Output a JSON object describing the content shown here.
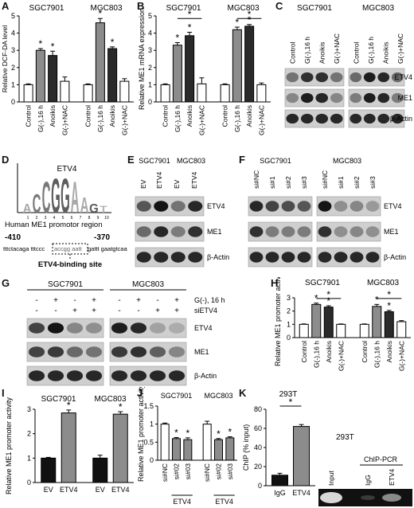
{
  "panels": {
    "A": {
      "letter": "A",
      "ylabel": "Relative DCF-DA level",
      "groups": [
        "SGC7901",
        "MGC803"
      ],
      "categories": [
        "Control",
        "G(-),16 h",
        "Anoikis",
        "G(-)+NAC"
      ]
    },
    "B": {
      "letter": "B",
      "ylabel": "Relative ME1 mRNA expression",
      "groups": [
        "SGC7901",
        "MGC803"
      ],
      "categories": [
        "Control",
        "G(-),16 h",
        "Anoikis",
        "G(-)+NAC"
      ]
    },
    "C": {
      "letter": "C",
      "groups": [
        "SGC7901",
        "MGC803"
      ],
      "lanes": [
        "Control",
        "G(-),16 h",
        "Anoikis",
        "G(-)+NAC"
      ],
      "bands": [
        "ETV4",
        "ME1",
        "β-Actin"
      ]
    },
    "D": {
      "letter": "D",
      "motif_label": "ETV4",
      "region_label": "Human ME1 promotor region",
      "pos_left": "-410",
      "pos_right": "-370",
      "seq_left": "tttctacaga tttccc",
      "seq_box": "accgg aatt",
      "seq_right": "gattt gaatgtcaat",
      "site_label": "ETV4-binding site",
      "logo_letters": [
        "A",
        "C",
        "C",
        "G",
        "G",
        "A",
        "A",
        "G",
        "T"
      ]
    },
    "E": {
      "letter": "E",
      "groups": [
        "SGC7901",
        "MGC803"
      ],
      "lanes": [
        "EV",
        "ETV4",
        "EV",
        "ETV4"
      ],
      "bands": [
        "ETV4",
        "ME1",
        "β-Actin"
      ]
    },
    "F": {
      "letter": "F",
      "groups": [
        "SGC7901",
        "MGC803"
      ],
      "lanes": [
        "si#NC",
        "si#1",
        "si#2",
        "si#3",
        "si#NC",
        "si#1",
        "si#2",
        "si#3"
      ],
      "bands": [
        "ETV4",
        "ME1",
        "β-Actin"
      ]
    },
    "G": {
      "letter": "G",
      "groups": [
        "SGC7901",
        "MGC803"
      ],
      "row1_label": "G(-), 16 h",
      "row2_label": "siETV4",
      "row1": [
        "-",
        "+",
        "-",
        "+",
        "-",
        "+",
        "-",
        "+"
      ],
      "row2": [
        "-",
        "-",
        "+",
        "+",
        "-",
        "-",
        "+",
        "+"
      ],
      "bands": [
        "ETV4",
        "ME1",
        "β-Actin"
      ]
    },
    "H": {
      "letter": "H",
      "ylabel": "Relative ME1 promoter activity",
      "groups": [
        "SGC7901",
        "MGC803"
      ],
      "categories": [
        "Control",
        "G(-),16 h",
        "Anoikis",
        "G(-)+NAC"
      ]
    },
    "I": {
      "letter": "I",
      "ylabel": "Relative ME1 promoter activity",
      "groups": [
        "SGC7901",
        "MGC803"
      ],
      "categories": [
        "EV",
        "ETV4"
      ]
    },
    "J": {
      "letter": "J",
      "ylabel": "Relative ME1 promoter activity",
      "groups": [
        "SGC7901",
        "MGC803"
      ],
      "categories": [
        "si#NC",
        "si#02",
        "si#03"
      ],
      "sublabel": "ETV4"
    },
    "K": {
      "letter": "K",
      "ylabel": "ChIP (% input)",
      "cell": "293T",
      "categories": [
        "IgG",
        "ETV4"
      ],
      "gel_title": "ChIP-PCR",
      "gel_lanes": [
        "Input",
        "IgG",
        "ETV4"
      ]
    }
  },
  "chart_data": [
    {
      "type": "bar",
      "panel": "A",
      "ylabel": "Relative DCF-DA level",
      "ylim": [
        0,
        5
      ],
      "yticks": [
        0,
        1,
        2,
        3,
        4,
        5
      ],
      "groups": [
        "SGC7901",
        "MGC803"
      ],
      "categories": [
        "Control",
        "G(-),16 h",
        "Anoikis",
        "G(-)+NAC"
      ],
      "series": [
        {
          "group": "SGC7901",
          "values": [
            1.0,
            3.0,
            2.7,
            1.2
          ],
          "errors": [
            0.05,
            0.1,
            0.25,
            0.25
          ]
        },
        {
          "group": "MGC803",
          "values": [
            1.0,
            4.6,
            3.1,
            1.2
          ],
          "errors": [
            0.05,
            0.25,
            0.1,
            0.15
          ]
        }
      ],
      "significance": [
        [
          0,
          1
        ],
        [
          0,
          2
        ],
        [
          1,
          1
        ],
        [
          1,
          2
        ]
      ]
    },
    {
      "type": "bar",
      "panel": "B",
      "ylabel": "Relative ME1 mRNA expression",
      "ylim": [
        0,
        5
      ],
      "yticks": [
        0,
        1,
        2,
        3,
        4,
        5
      ],
      "groups": [
        "SGC7901",
        "MGC803"
      ],
      "categories": [
        "Control",
        "G(-),16 h",
        "Anoikis",
        "G(-)+NAC"
      ],
      "series": [
        {
          "group": "SGC7901",
          "values": [
            1.0,
            3.3,
            3.85,
            1.05
          ],
          "errors": [
            0.05,
            0.15,
            0.2,
            0.35
          ]
        },
        {
          "group": "MGC803",
          "values": [
            1.0,
            4.2,
            4.4,
            1.0
          ],
          "errors": [
            0.05,
            0.15,
            0.1,
            0.1
          ]
        }
      ],
      "significance": [
        [
          0,
          1
        ],
        [
          0,
          2
        ],
        [
          1,
          1
        ],
        [
          1,
          2
        ]
      ]
    },
    {
      "type": "bar",
      "panel": "H",
      "ylabel": "Relative ME1 promoter activity",
      "ylim": [
        0,
        3
      ],
      "yticks": [
        0,
        1,
        2,
        3
      ],
      "groups": [
        "SGC7901",
        "MGC803"
      ],
      "categories": [
        "Control",
        "G(-),16 h",
        "Anoikis",
        "G(-)+NAC"
      ],
      "series": [
        {
          "group": "SGC7901",
          "values": [
            1.0,
            2.5,
            2.3,
            1.0
          ],
          "errors": [
            0.03,
            0.1,
            0.1,
            0.03
          ]
        },
        {
          "group": "MGC803",
          "values": [
            1.0,
            2.35,
            1.95,
            1.2
          ],
          "errors": [
            0.03,
            0.15,
            0.1,
            0.08
          ]
        }
      ],
      "significance": [
        [
          0,
          1
        ],
        [
          0,
          2
        ],
        [
          1,
          1
        ],
        [
          1,
          2
        ]
      ]
    },
    {
      "type": "bar",
      "panel": "I",
      "ylabel": "Relative ME1 promoter activity",
      "ylim": [
        0,
        3
      ],
      "yticks": [
        0,
        1,
        2,
        3
      ],
      "groups": [
        "SGC7901",
        "MGC803"
      ],
      "categories": [
        "EV",
        "ETV4"
      ],
      "series": [
        {
          "group": "SGC7901",
          "values": [
            1.0,
            2.85
          ],
          "errors": [
            0.03,
            0.12
          ]
        },
        {
          "group": "MGC803",
          "values": [
            1.0,
            2.8
          ],
          "errors": [
            0.12,
            0.1
          ]
        }
      ],
      "significance": [
        [
          0,
          1
        ],
        [
          1,
          1
        ]
      ]
    },
    {
      "type": "bar",
      "panel": "J",
      "ylabel": "Relative ME1 promoter activity",
      "ylim": [
        0,
        1.5
      ],
      "yticks": [
        0,
        0.5,
        1.0,
        1.5
      ],
      "groups": [
        "SGC7901",
        "MGC803"
      ],
      "categories": [
        "si#NC",
        "si#02",
        "si#03"
      ],
      "series": [
        {
          "group": "SGC7901",
          "values": [
            1.0,
            0.6,
            0.57
          ],
          "errors": [
            0.03,
            0.03,
            0.05
          ]
        },
        {
          "group": "MGC803",
          "values": [
            1.0,
            0.57,
            0.62
          ],
          "errors": [
            0.08,
            0.03,
            0.03
          ]
        }
      ],
      "significance": [
        [
          0,
          1
        ],
        [
          0,
          2
        ],
        [
          1,
          1
        ],
        [
          1,
          2
        ]
      ]
    },
    {
      "type": "bar",
      "panel": "K",
      "ylabel": "ChIP (% input)",
      "ylim": [
        0,
        80
      ],
      "yticks": [
        0,
        20,
        40,
        60,
        80
      ],
      "categories": [
        "IgG",
        "ETV4"
      ],
      "series": [
        {
          "group": "293T",
          "values": [
            11,
            62
          ],
          "errors": [
            2,
            2
          ]
        }
      ],
      "significance": [
        [
          0,
          1
        ]
      ]
    }
  ],
  "colors": {
    "control": "#ffffff",
    "gneg": "#8c8c8c",
    "anoikis": "#2a2a2a",
    "nac": "#ffffff",
    "black": "#111111"
  }
}
